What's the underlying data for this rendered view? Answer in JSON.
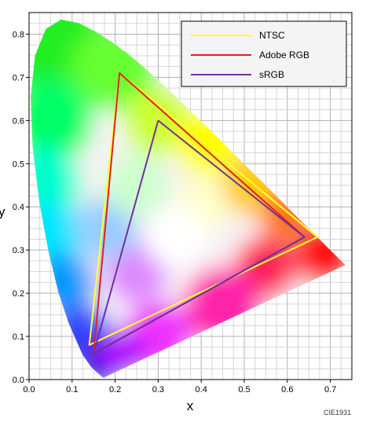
{
  "chart_data": {
    "type": "line",
    "xlabel": "x",
    "ylabel": "y",
    "xlim": [
      0.0,
      0.75
    ],
    "ylim": [
      0.0,
      0.85
    ],
    "x_ticks": [
      "0.0",
      "0.1",
      "0.2",
      "0.3",
      "0.4",
      "0.5",
      "0.6",
      "0.7"
    ],
    "y_ticks": [
      "0.0",
      "0.1",
      "0.2",
      "0.3",
      "0.4",
      "0.5",
      "0.6",
      "0.7",
      "0.8"
    ],
    "grid": true,
    "legend_position": "top-right",
    "footnote": "CIE1931",
    "series": [
      {
        "name": "NTSC",
        "color": "#ffff33",
        "points": [
          [
            0.67,
            0.33
          ],
          [
            0.21,
            0.71
          ],
          [
            0.14,
            0.08
          ]
        ]
      },
      {
        "name": "Adobe RGB",
        "color": "#e02020",
        "points": [
          [
            0.64,
            0.33
          ],
          [
            0.21,
            0.71
          ],
          [
            0.15,
            0.06
          ]
        ]
      },
      {
        "name": "sRGB",
        "color": "#7030a0",
        "points": [
          [
            0.64,
            0.33
          ],
          [
            0.3,
            0.6
          ],
          [
            0.15,
            0.06
          ]
        ]
      }
    ],
    "spectral_locus": [
      [
        0.1741,
        0.005
      ],
      [
        0.1738,
        0.0049
      ],
      [
        0.1736,
        0.0049
      ],
      [
        0.1733,
        0.0048
      ],
      [
        0.1726,
        0.0048
      ],
      [
        0.1714,
        0.0051
      ],
      [
        0.1689,
        0.0069
      ],
      [
        0.1644,
        0.0109
      ],
      [
        0.1566,
        0.0177
      ],
      [
        0.144,
        0.0297
      ],
      [
        0.1241,
        0.0578
      ],
      [
        0.0913,
        0.1327
      ],
      [
        0.0687,
        0.2007
      ],
      [
        0.0454,
        0.295
      ],
      [
        0.0235,
        0.4127
      ],
      [
        0.0082,
        0.5384
      ],
      [
        0.0039,
        0.6548
      ],
      [
        0.0139,
        0.7502
      ],
      [
        0.0389,
        0.812
      ],
      [
        0.0743,
        0.8338
      ],
      [
        0.1142,
        0.8262
      ],
      [
        0.1547,
        0.8059
      ],
      [
        0.1929,
        0.7816
      ],
      [
        0.2296,
        0.7543
      ],
      [
        0.2658,
        0.7243
      ],
      [
        0.3016,
        0.6923
      ],
      [
        0.3373,
        0.6589
      ],
      [
        0.3731,
        0.6245
      ],
      [
        0.4087,
        0.5896
      ],
      [
        0.4441,
        0.5547
      ],
      [
        0.4788,
        0.5202
      ],
      [
        0.5125,
        0.4866
      ],
      [
        0.5448,
        0.4544
      ],
      [
        0.5752,
        0.4242
      ],
      [
        0.6029,
        0.3965
      ],
      [
        0.627,
        0.3725
      ],
      [
        0.6482,
        0.3514
      ],
      [
        0.6658,
        0.334
      ],
      [
        0.6801,
        0.3197
      ],
      [
        0.6915,
        0.3083
      ],
      [
        0.7006,
        0.2993
      ],
      [
        0.7079,
        0.292
      ],
      [
        0.714,
        0.2859
      ],
      [
        0.719,
        0.2809
      ],
      [
        0.723,
        0.277
      ],
      [
        0.726,
        0.274
      ],
      [
        0.7283,
        0.2717
      ],
      [
        0.73,
        0.27
      ],
      [
        0.7311,
        0.2689
      ],
      [
        0.732,
        0.268
      ],
      [
        0.7327,
        0.2673
      ],
      [
        0.7334,
        0.2666
      ],
      [
        0.734,
        0.266
      ],
      [
        0.7344,
        0.2656
      ],
      [
        0.7346,
        0.2654
      ],
      [
        0.7347,
        0.2653
      ]
    ]
  }
}
